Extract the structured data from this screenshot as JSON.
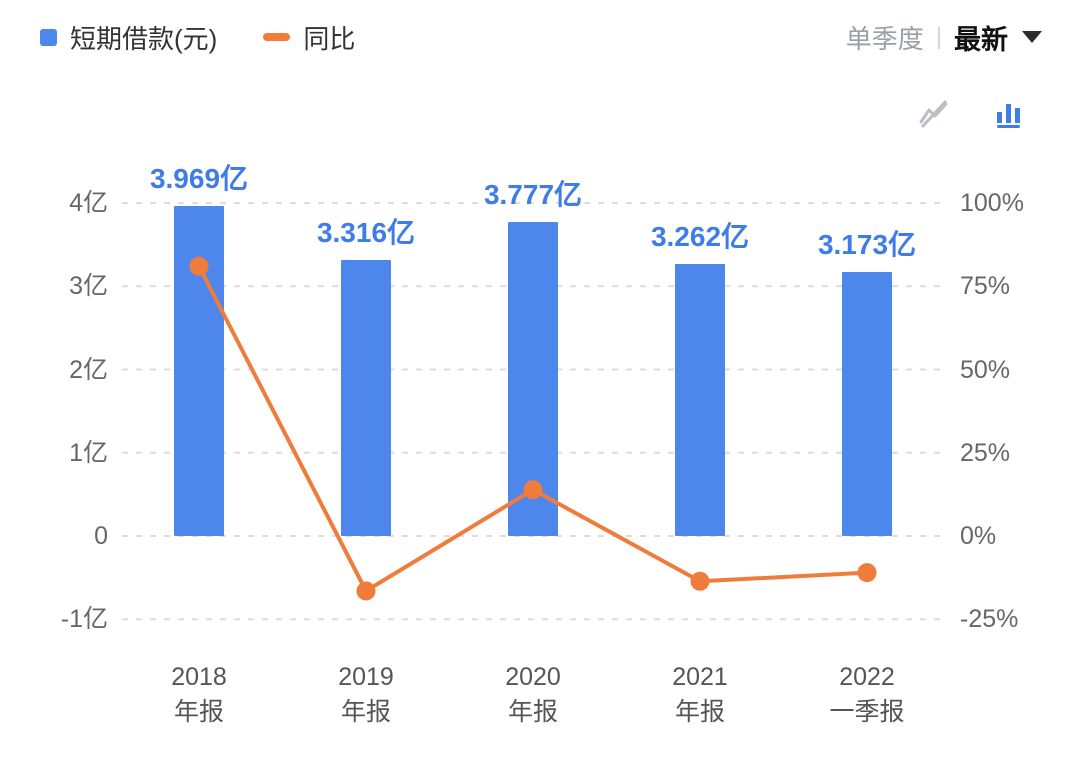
{
  "header": {
    "legend": [
      {
        "type": "bar",
        "label": "短期借款(元)",
        "color": "#4e87ec"
      },
      {
        "type": "line",
        "label": "同比",
        "color": "#f07c3c"
      }
    ],
    "period": {
      "quarter_label": "单季度",
      "separator": "|",
      "latest_label": "最新"
    }
  },
  "toolbar": {
    "icons": [
      {
        "name": "line-chart-icon",
        "state": "disabled"
      },
      {
        "name": "bar-chart-icon",
        "state": "active"
      }
    ]
  },
  "chart_data": {
    "type": "bar",
    "categories": [
      [
        "2018",
        "年报"
      ],
      [
        "2019",
        "年报"
      ],
      [
        "2020",
        "年报"
      ],
      [
        "2021",
        "年报"
      ],
      [
        "2022",
        "一季报"
      ]
    ],
    "series": [
      {
        "name": "短期借款(元)",
        "type": "bar",
        "axis": "left",
        "unit": "亿",
        "values": [
          3.969,
          3.316,
          3.777,
          3.262,
          3.173
        ],
        "labels": [
          "3.969亿",
          "3.316亿",
          "3.777亿",
          "3.262亿",
          "3.173亿"
        ],
        "color": "#4e87ec",
        "label_color": "#3e7de9"
      },
      {
        "name": "同比",
        "type": "line",
        "axis": "right",
        "unit": "%",
        "values": [
          81,
          -16.5,
          13.9,
          -13.6,
          -11
        ],
        "color": "#f07c3c"
      }
    ],
    "left_axis": {
      "ticks": [
        {
          "label": "4亿",
          "value": 4
        },
        {
          "label": "3亿",
          "value": 3
        },
        {
          "label": "2亿",
          "value": 2
        },
        {
          "label": "1亿",
          "value": 1
        },
        {
          "label": "0",
          "value": 0
        },
        {
          "label": "-1亿",
          "value": -1
        }
      ],
      "range": [
        -1.4,
        4.2
      ]
    },
    "right_axis": {
      "ticks": [
        {
          "label": "100%",
          "value": 100
        },
        {
          "label": "75%",
          "value": 75
        },
        {
          "label": "50%",
          "value": 50
        },
        {
          "label": "25%",
          "value": 25
        },
        {
          "label": "0%",
          "value": 0
        },
        {
          "label": "-25%",
          "value": -25
        }
      ],
      "range": [
        -35,
        105
      ]
    },
    "grid": "dashed-horizontal",
    "legend_position": "top-left",
    "title": ""
  }
}
